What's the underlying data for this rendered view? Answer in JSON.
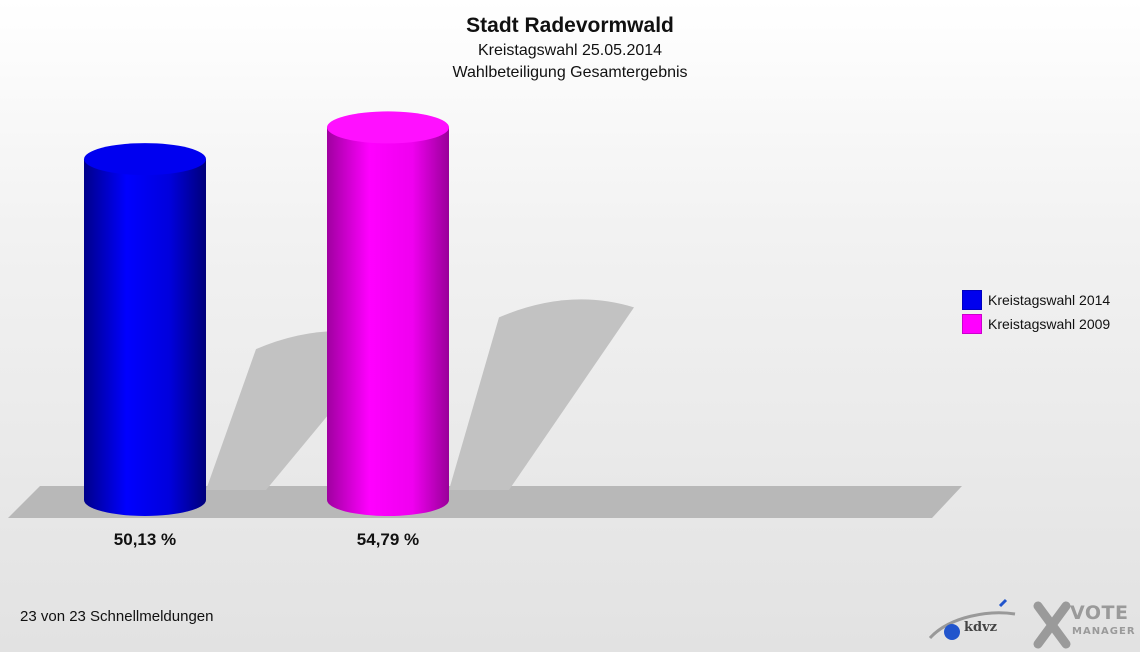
{
  "title": "Stadt Radevormwald",
  "subtitle_1": "Kreistagswahl 25.05.2014",
  "subtitle_2": "Wahlbeteiligung Gesamtergebnis",
  "footer": "23 von 23 Schnellmeldungen",
  "logo": {
    "kdvz": "kdvz",
    "vote": "VOTE",
    "manager": "MANAGER"
  },
  "chart_data": {
    "type": "bar",
    "categories": [
      "Kreistagswahl 2014",
      "Kreistagswahl 2009"
    ],
    "values": [
      50.13,
      54.79
    ],
    "labels": [
      "50,13 %",
      "54,79 %"
    ],
    "colors": [
      "#0000ee",
      "#ff00ff"
    ],
    "legend": [
      {
        "name": "Kreistagswahl 2014",
        "color": "#0000ee"
      },
      {
        "name": "Kreistagswahl 2009",
        "color": "#ff00ff"
      }
    ],
    "legend_position": "right",
    "ylim": [
      0,
      100
    ],
    "grid": false
  }
}
